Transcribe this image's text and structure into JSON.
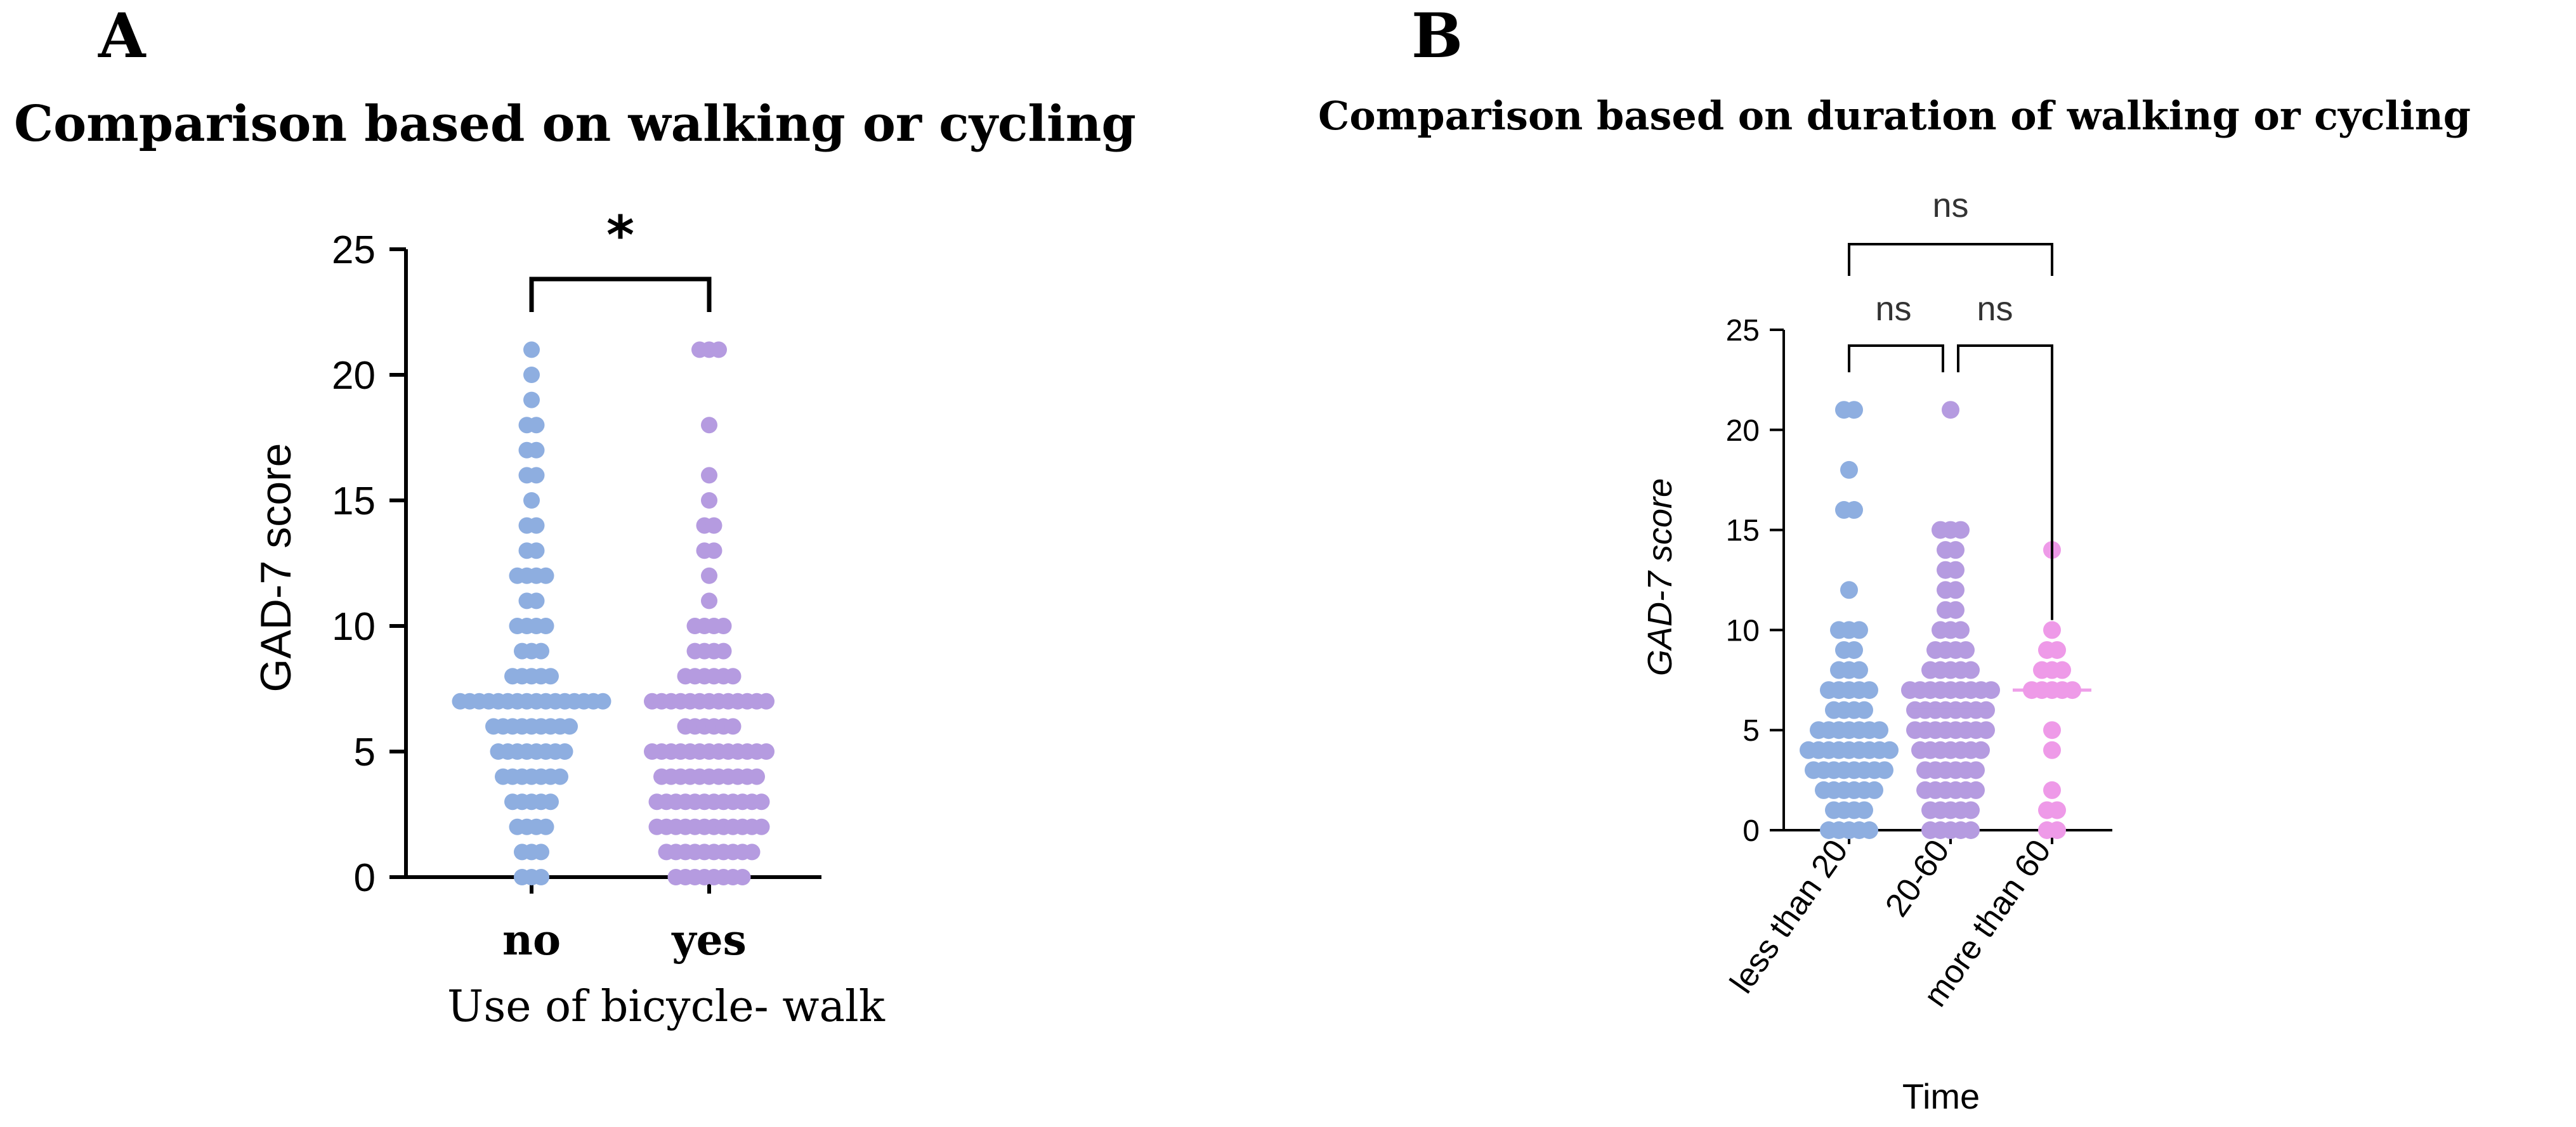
{
  "chart_data": [
    {
      "type": "scatter",
      "panel_label": "A",
      "title": "Comparison based on walking or cycling",
      "ylabel": "GAD-7 score",
      "xlabel": "Use of bicycle- walk",
      "ylim": [
        0,
        25
      ],
      "yticks": [
        0,
        5,
        10,
        15,
        20,
        25
      ],
      "categories": [
        "no",
        "yes"
      ],
      "significance": [
        {
          "from": "no",
          "to": "yes",
          "label": "*"
        }
      ],
      "series": [
        {
          "name": "no",
          "color": "#8eaee0",
          "median": 7,
          "counts": {
            "0": 3,
            "1": 3,
            "2": 4,
            "3": 5,
            "4": 7,
            "5": 8,
            "6": 9,
            "7": 16,
            "8": 5,
            "9": 3,
            "10": 4,
            "11": 2,
            "12": 4,
            "13": 2,
            "14": 2,
            "15": 1,
            "16": 2,
            "17": 2,
            "18": 2,
            "19": 1,
            "20": 1,
            "21": 1
          }
        },
        {
          "name": "yes",
          "color": "#b59be0",
          "median": 5,
          "counts": {
            "0": 8,
            "1": 10,
            "2": 12,
            "3": 12,
            "4": 11,
            "5": 13,
            "6": 6,
            "7": 13,
            "8": 6,
            "9": 4,
            "10": 4,
            "11": 1,
            "12": 1,
            "13": 2,
            "14": 2,
            "15": 1,
            "16": 1,
            "18": 1,
            "21": 3
          }
        }
      ]
    },
    {
      "type": "scatter",
      "panel_label": "B",
      "title": "Comparison based on duration of walking or cycling",
      "ylabel": "GAD-7 score",
      "xlabel": "Time",
      "ylim": [
        0,
        25
      ],
      "yticks": [
        0,
        5,
        10,
        15,
        20,
        25
      ],
      "categories": [
        "less than 20",
        "20-60",
        "more than 60"
      ],
      "significance": [
        {
          "from": "less than 20",
          "to": "20-60",
          "label": "ns"
        },
        {
          "from": "20-60",
          "to": "more than 60",
          "label": "ns"
        },
        {
          "from": "less than 20",
          "to": "more than 60",
          "label": "ns"
        }
      ],
      "series": [
        {
          "name": "less than 20",
          "color": "#8eaee0",
          "median": 4,
          "counts": {
            "0": 5,
            "1": 4,
            "2": 6,
            "3": 8,
            "4": 9,
            "5": 7,
            "6": 4,
            "7": 5,
            "8": 3,
            "9": 2,
            "10": 3,
            "12": 1,
            "16": 2,
            "18": 1,
            "21": 2
          }
        },
        {
          "name": "20-60",
          "color": "#b59be0",
          "median": 6,
          "counts": {
            "0": 5,
            "1": 5,
            "2": 6,
            "3": 6,
            "4": 7,
            "5": 8,
            "6": 8,
            "7": 9,
            "8": 5,
            "9": 4,
            "10": 3,
            "11": 2,
            "12": 2,
            "13": 2,
            "14": 2,
            "15": 3,
            "21": 1
          }
        },
        {
          "name": "more than 60",
          "color": "#ee9ae8",
          "median": 7,
          "counts": {
            "0": 2,
            "1": 2,
            "2": 1,
            "4": 1,
            "5": 1,
            "7": 5,
            "8": 3,
            "9": 2,
            "10": 1,
            "14": 1
          }
        }
      ]
    }
  ]
}
